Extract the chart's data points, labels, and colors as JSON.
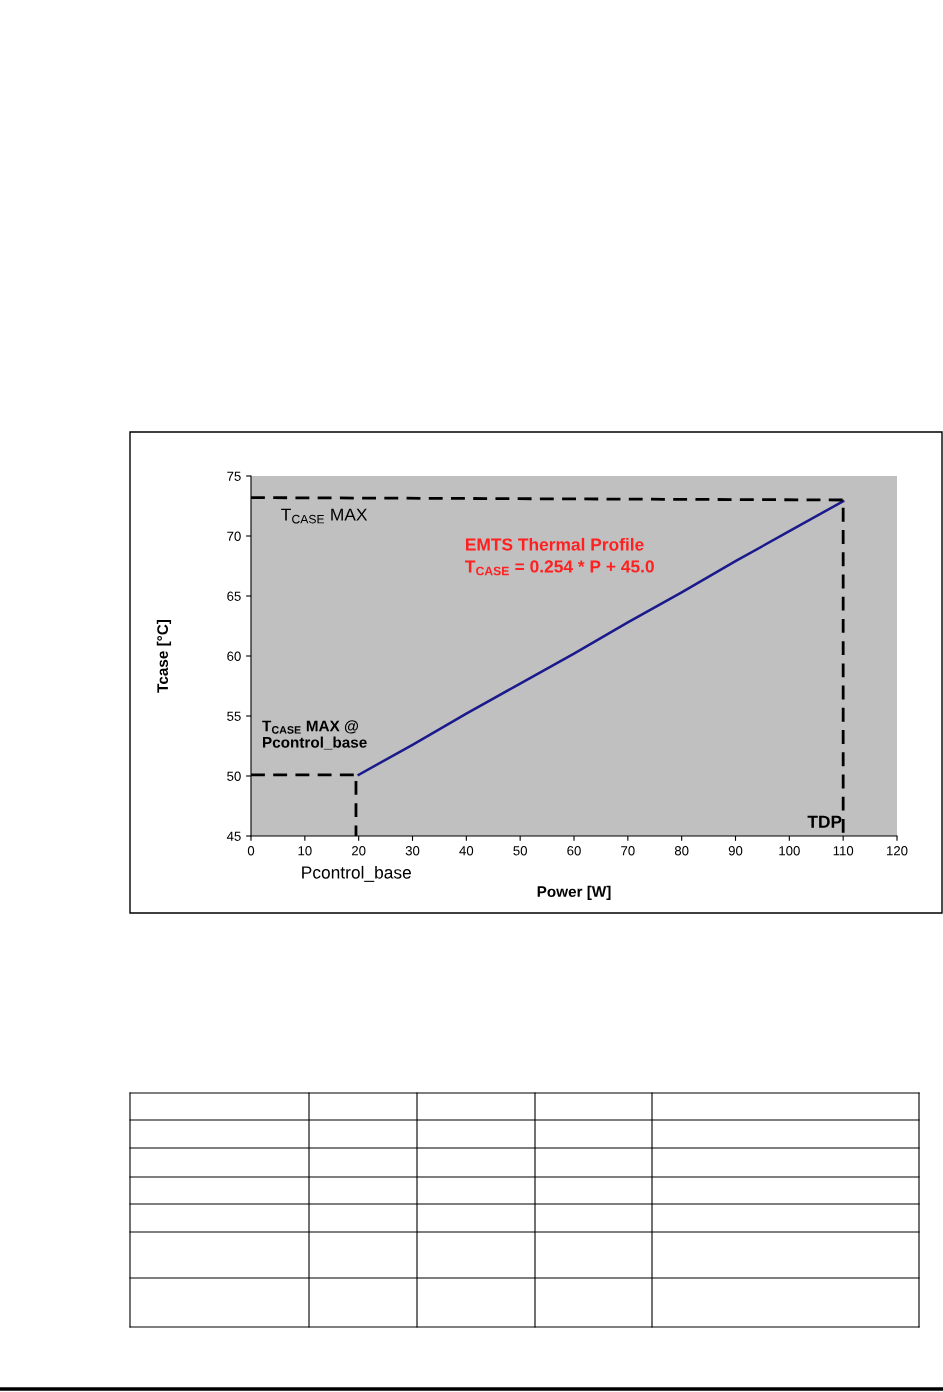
{
  "chart_data": {
    "type": "line",
    "xlabel": "Power [W]",
    "ylabel": "Tcase [°C]",
    "xlim": [
      0,
      120
    ],
    "xticks": [
      0,
      10,
      20,
      30,
      40,
      50,
      60,
      70,
      80,
      90,
      100,
      110,
      120
    ],
    "ylim": [
      45,
      75
    ],
    "yticks": [
      45,
      50,
      55,
      60,
      65,
      70,
      75
    ],
    "grid": false,
    "legend": false,
    "series": [
      {
        "color": "#1a1a8c",
        "line_style": "solid",
        "x": [
          20,
          30,
          40,
          50,
          60,
          70,
          80,
          90,
          100,
          110
        ],
        "values": [
          50.1,
          52.6,
          55.2,
          57.7,
          60.2,
          62.8,
          65.3,
          67.9,
          70.4,
          72.9
        ]
      },
      {
        "color": "#000000",
        "line_style": "dashed",
        "x": [
          0,
          110,
          110
        ],
        "values": [
          73.2,
          73.0,
          45
        ]
      },
      {
        "color": "#000000",
        "line_style": "dashed",
        "x": [
          0,
          19.5,
          19.5
        ],
        "values": [
          50.1,
          50.1,
          45
        ]
      }
    ],
    "annotations": [
      "T$_{CASE}$ MAX",
      "EMTS Thermal Profile",
      "T$_{CASE}$ = 0.254 * P + 45.0",
      "T$_{CASE}$ MAX @\nPcontrol_base",
      "TDP",
      "Pcontrol_base"
    ]
  }
}
